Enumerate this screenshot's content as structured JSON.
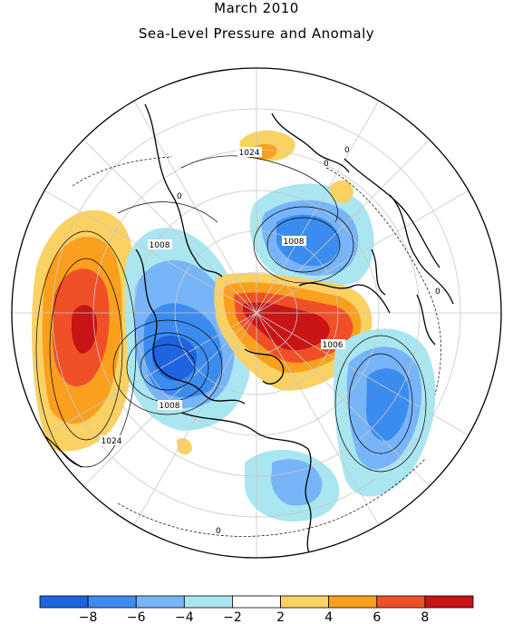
{
  "title": "March 2010",
  "subtitle": "Sea-Level Pressure and Anomaly",
  "contour_labels": [
    "1024",
    "1008",
    "1008",
    "1006",
    "1008",
    "1024"
  ],
  "zero_label": "0",
  "colors": {
    "neg_8": "#1e64e0",
    "neg_6": "#3c8cf0",
    "neg_4": "#78b4f8",
    "neg_2": "#aae6f0",
    "neutral": "#ffffff",
    "pos_2": "#fad264",
    "pos_4": "#faa01e",
    "pos_6": "#f05028",
    "pos_8": "#c81414"
  },
  "colorbar": {
    "bins": [
      "#1e64e0",
      "#3c8cf0",
      "#78b4f8",
      "#aae6f0",
      "#ffffff",
      "#fad264",
      "#faa01e",
      "#f05028",
      "#c81414"
    ],
    "labels": [
      "−8",
      "−6",
      "−4",
      "−2",
      "2",
      "4",
      "6",
      "8"
    ]
  }
}
